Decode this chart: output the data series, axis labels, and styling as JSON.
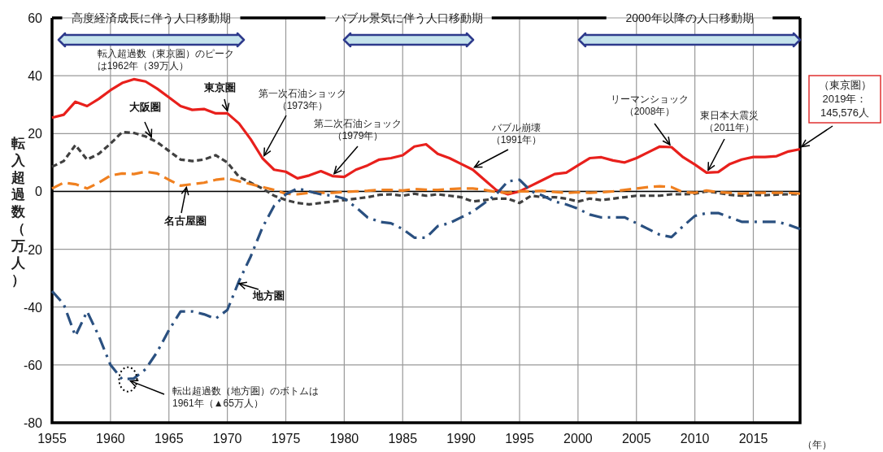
{
  "chart_data": {
    "type": "line",
    "xlabel": "（年）",
    "ylabel": "転入超過数（万人）",
    "x": [
      1955,
      1956,
      1957,
      1958,
      1959,
      1960,
      1961,
      1962,
      1963,
      1964,
      1965,
      1966,
      1967,
      1968,
      1969,
      1970,
      1971,
      1972,
      1973,
      1974,
      1975,
      1976,
      1977,
      1978,
      1979,
      1980,
      1981,
      1982,
      1983,
      1984,
      1985,
      1986,
      1987,
      1988,
      1989,
      1990,
      1991,
      1992,
      1993,
      1994,
      1995,
      1996,
      1997,
      1998,
      1999,
      2000,
      2001,
      2002,
      2003,
      2004,
      2005,
      2006,
      2007,
      2008,
      2009,
      2010,
      2011,
      2012,
      2013,
      2014,
      2015,
      2016,
      2017,
      2018,
      2019
    ],
    "series": [
      {
        "name": "東京圏",
        "color": "#e8201c",
        "line_style": "solid",
        "values": [
          25.5,
          26.5,
          31,
          29.5,
          32,
          35,
          37.5,
          38.8,
          38,
          35.5,
          32.5,
          29.5,
          28.2,
          28.5,
          27,
          27,
          23.5,
          18,
          11.5,
          7.5,
          6.8,
          4.5,
          5.5,
          7,
          5.3,
          5,
          7.5,
          9,
          11,
          11.5,
          12.5,
          15.5,
          16.3,
          13,
          11.5,
          9.5,
          7.5,
          4,
          0.5,
          -1,
          0,
          2,
          4,
          6,
          6.5,
          9,
          11.5,
          11.8,
          10.7,
          10,
          11.5,
          13.5,
          15.5,
          15.3,
          11.8,
          9.3,
          6.5,
          6.7,
          9.5,
          11,
          11.9,
          11.9,
          12.2,
          13.8,
          14.6
        ]
      },
      {
        "name": "大阪圏",
        "color": "#404040",
        "line_style": "dashed",
        "values": [
          8.5,
          10.5,
          16,
          11,
          13,
          16.5,
          20.5,
          20.2,
          19,
          17,
          14,
          11,
          10.5,
          11,
          12.5,
          10,
          5,
          3,
          1,
          -1.5,
          -3,
          -4,
          -4.5,
          -4,
          -3.5,
          -3,
          -2.5,
          -2,
          -1.2,
          -1,
          -1.5,
          -0.8,
          -1.5,
          -1,
          -1.5,
          -2,
          -3.5,
          -3,
          -2.5,
          -2.5,
          -4,
          -1.5,
          -2,
          -2,
          -2.5,
          -3.5,
          -2.5,
          -3,
          -2.5,
          -2,
          -1.5,
          -1.5,
          -1.5,
          -1,
          -1,
          -0.8,
          0,
          -0.5,
          -1.2,
          -1.5,
          -1.2,
          -1.3,
          -1.1,
          -1,
          -1
        ]
      },
      {
        "name": "名古屋圏",
        "color": "#f08020",
        "line_style": "longdash",
        "values": [
          1,
          3,
          2.5,
          1,
          3,
          5.5,
          6.2,
          6,
          6.8,
          6.2,
          4,
          2,
          2.5,
          3,
          4,
          4.5,
          3.5,
          2.5,
          1.5,
          0.5,
          -0.8,
          -1,
          -0.5,
          -0.5,
          -0.5,
          -0.2,
          0,
          0.2,
          0.5,
          0.5,
          0.3,
          0.8,
          0.6,
          0.5,
          0.8,
          1,
          1,
          0.5,
          -0.2,
          -0.5,
          0,
          0,
          0.2,
          -0.2,
          -0.5,
          -0.3,
          -0.5,
          -0.3,
          0,
          0.5,
          1,
          1.5,
          1.8,
          1.5,
          -0.3,
          -0.5,
          0.3,
          -0.3,
          -0.5,
          -0.8,
          -0.5,
          -0.5,
          -0.5,
          -0.5,
          -0.8
        ]
      },
      {
        "name": "地方圏",
        "color": "#2a5080",
        "line_style": "dashdot",
        "values": [
          -34.5,
          -39,
          -50,
          -41.5,
          -50,
          -60,
          -65,
          -64.7,
          -61.5,
          -55.5,
          -48,
          -41.5,
          -41.5,
          -42.5,
          -44,
          -41,
          -31,
          -22.5,
          -12.5,
          -5,
          -1,
          1,
          0,
          -1,
          -1.5,
          -2.5,
          -5.5,
          -9,
          -10.5,
          -11,
          -13,
          -16,
          -16,
          -12,
          -11,
          -9,
          -7,
          -4,
          -1,
          3.5,
          4,
          0,
          -1.5,
          -3.5,
          -4.5,
          -6,
          -8,
          -9,
          -9,
          -9,
          -11,
          -13,
          -15,
          -15.8,
          -12,
          -8.5,
          -7.5,
          -7.5,
          -9,
          -10.5,
          -10.5,
          -10.5,
          -10.5,
          -11.5,
          -13
        ]
      }
    ],
    "xlim": [
      1955,
      2019
    ],
    "xticks": [
      1955,
      1960,
      1965,
      1970,
      1975,
      1980,
      1985,
      1990,
      1995,
      2000,
      2005,
      2010,
      2015
    ],
    "ylim": [
      -80,
      60
    ],
    "yticks": [
      -80,
      -60,
      -40,
      -20,
      0,
      20,
      40,
      60
    ],
    "grid": true,
    "annotations": [
      {
        "text": "転入超過数（東京圏）のピークは1962年（39万人）",
        "x": 1962,
        "y": 38.8
      },
      {
        "text": "第一次石油ショック（1973年）",
        "x": 1973,
        "y": 11.5
      },
      {
        "text": "第二次石油ショック（1979年）",
        "x": 1979,
        "y": 5.3
      },
      {
        "text": "バブル崩壊（1991年）",
        "x": 1991,
        "y": 7.5
      },
      {
        "text": "リーマンショック（2008年）",
        "x": 2008,
        "y": 15.3
      },
      {
        "text": "東日本大震災（2011年）",
        "x": 2011,
        "y": 6.5
      },
      {
        "text": "（東京圏）2019年：145,576人",
        "x": 2019,
        "y": 14.6
      },
      {
        "text": "転出超過数（地方圏）のボトムは1961年（▲65万人）",
        "x": 1961.5,
        "y": -65
      },
      "高度経済成長に伴う人口移動期",
      "バブル景気に伴う人口移動期",
      "2000年以降の人口移動期"
    ]
  }
}
